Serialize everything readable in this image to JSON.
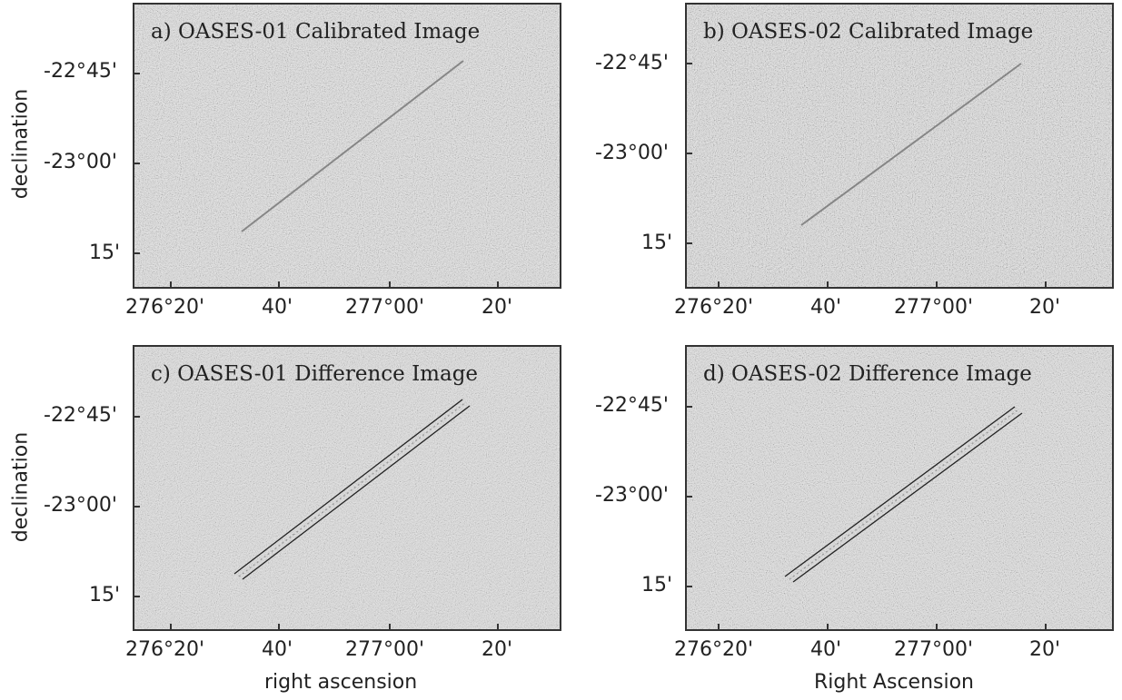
{
  "panels": [
    {
      "title": "a) OASES-01 Calibrated Image",
      "kind": "calibrated"
    },
    {
      "title": "b) OASES-02 Calibrated Image",
      "kind": "calibrated"
    },
    {
      "title": "c) OASES-01 Difference Image",
      "kind": "difference"
    },
    {
      "title": "d) OASES-02 Difference Image",
      "kind": "difference"
    }
  ],
  "axes": {
    "x_ticks": [
      "276°20'",
      "40'",
      "277°00'",
      "20'"
    ],
    "y_ticks": [
      "-22°45'",
      "-23°00'",
      "15'"
    ],
    "ylabel": "declination",
    "xlabel_left": "right ascension",
    "xlabel_right": "Right Ascension"
  },
  "colors": {
    "background": "#d9d9d9",
    "frame": "#333333",
    "streak": "#555555"
  }
}
